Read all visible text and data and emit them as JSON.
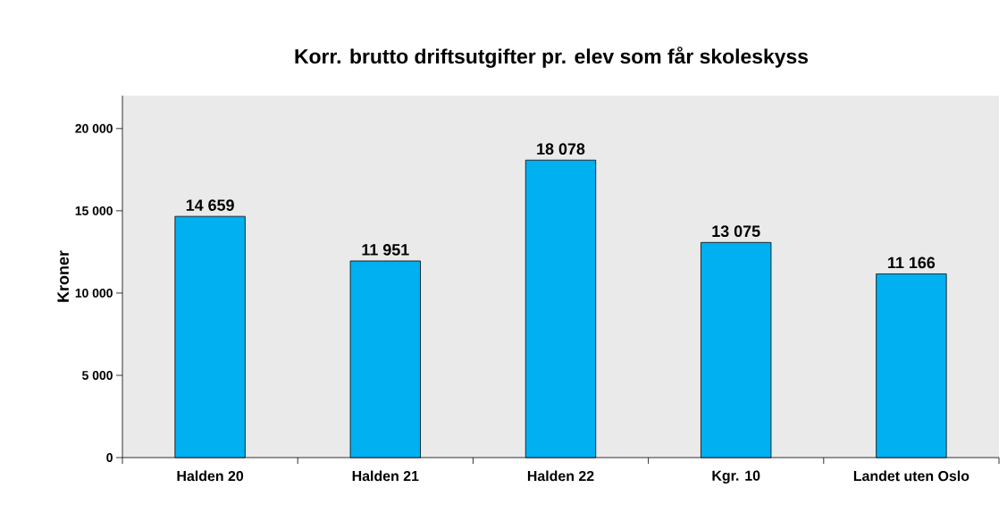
{
  "chart_data": {
    "type": "bar",
    "title": "Korr. brutto driftsutgifter pr. elev som får skoleskyss",
    "ylabel": "Kroner",
    "categories": [
      "Halden 20",
      "Halden 21",
      "Halden 22",
      "Kgr. 10",
      "Landet uten Oslo"
    ],
    "values": [
      14659,
      11951,
      18078,
      13075,
      11166
    ],
    "value_labels": [
      "14 659",
      "11 951",
      "18 078",
      "13 075",
      "11 166"
    ],
    "color": "#00b0f0",
    "ylim": [
      0,
      22000
    ],
    "yticks": [
      {
        "value": 0,
        "label": "0"
      },
      {
        "value": 5000,
        "label": "5 000"
      },
      {
        "value": 10000,
        "label": "10 000"
      },
      {
        "value": 15000,
        "label": "15 000"
      },
      {
        "value": 20000,
        "label": "20 000"
      }
    ]
  }
}
